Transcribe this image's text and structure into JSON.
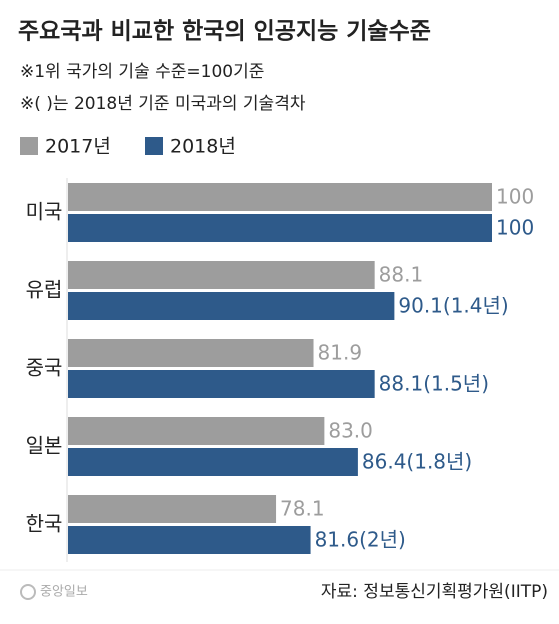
{
  "chart_data": {
    "type": "bar",
    "orientation": "horizontal",
    "title": "주요국과 비교한 한국의 인공지능 기술수준",
    "notes": [
      "※1위 국가의 기술 수준=100기준",
      "※( )는 2018년 기준 미국과의 기술격차"
    ],
    "categories": [
      "미국",
      "유럽",
      "중국",
      "일본",
      "한국"
    ],
    "series": [
      {
        "name": "2017년",
        "color": "#9d9d9d",
        "values": [
          100,
          88.1,
          81.9,
          83.0,
          78.1
        ],
        "value_labels": [
          "100",
          "88.1",
          "81.9",
          "83.0",
          "78.1"
        ]
      },
      {
        "name": "2018년",
        "color": "#2e5a8a",
        "values": [
          100,
          90.1,
          88.1,
          86.4,
          81.6
        ],
        "value_labels": [
          "100",
          "90.1(1.4년)",
          "88.1(1.5년)",
          "86.4(1.8년)",
          "81.6(2년)"
        ]
      }
    ],
    "xlim": [
      57,
      100
    ],
    "source": "자료: 정보통신기획평가원(IITP)",
    "logo": "중앙일보"
  }
}
